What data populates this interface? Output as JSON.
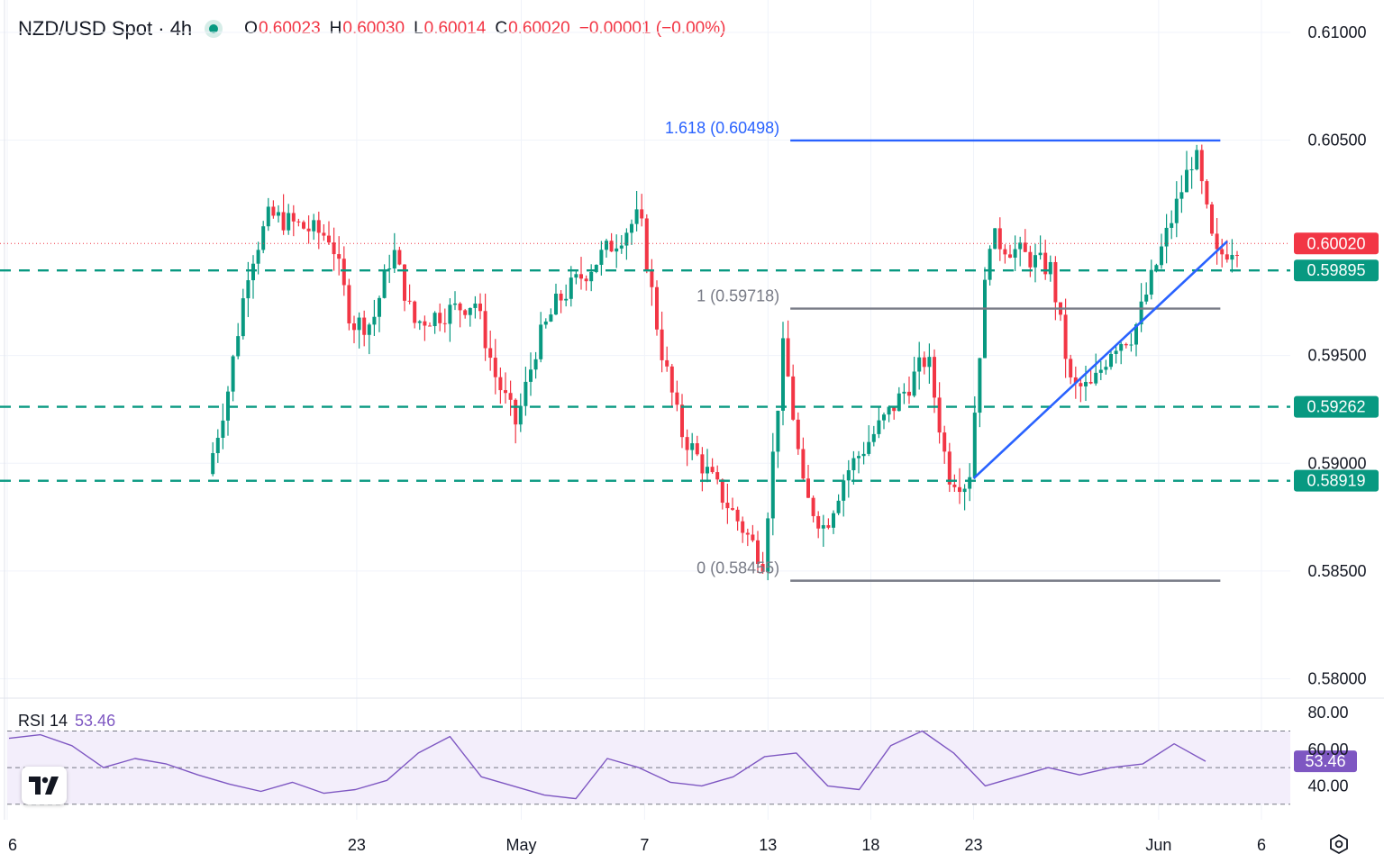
{
  "header": {
    "symbol": "NZD/USD Spot · 4h",
    "open_label": "O",
    "open": "0.60023",
    "high_label": "H",
    "high": "0.60030",
    "low_label": "L",
    "low": "0.60014",
    "close_label": "C",
    "close": "0.60020",
    "change": "−0.00001 (−0.00%)"
  },
  "colors": {
    "up": "#089981",
    "down": "#f23645",
    "fib_blue": "#2962ff",
    "fib_grey": "#787b86",
    "rsi": "#7e57c2",
    "rsi_band": "#f3eefb"
  },
  "chart_data": [
    {
      "type": "candlestick",
      "title": "NZD/USD Spot · 4h",
      "y_axis": {
        "ticks": [
          "0.61000",
          "0.60500",
          "0.59500",
          "0.59000",
          "0.58500",
          "0.58000"
        ],
        "ylim": [
          0.5791,
          0.6115
        ]
      },
      "x_axis": {
        "ticks": [
          "6",
          "23",
          "May",
          "7",
          "13",
          "18",
          "23",
          "Jun",
          "6"
        ]
      },
      "last_price": {
        "value": 0.6002,
        "label": "0.60020"
      },
      "levels": [
        {
          "value": 0.59895,
          "label": "0.59895"
        },
        {
          "value": 0.59262,
          "label": "0.59262"
        },
        {
          "value": 0.58919,
          "label": "0.58919"
        }
      ],
      "fibonacci": [
        {
          "label": "1.618 (0.60498)",
          "value": 0.60498
        },
        {
          "label": "1 (0.59718)",
          "value": 0.59718
        },
        {
          "label": "0 (0.58455)",
          "value": 0.58455
        }
      ],
      "trendline": {
        "from": {
          "date": "May 23",
          "value": 0.5893
        },
        "to": {
          "date": "Jun 4",
          "value": 0.6
        }
      },
      "close_path": [
        [
          "Apr 16",
          0.5895
        ],
        [
          "Apr 17",
          0.5935
        ],
        [
          "Apr 18",
          0.5992
        ],
        [
          "Apr 19",
          0.6015
        ],
        [
          "Apr 22",
          0.6005
        ],
        [
          "Apr 23",
          0.5965
        ],
        [
          "Apr 24",
          0.5965
        ],
        [
          "Apr 25",
          0.6
        ],
        [
          "Apr 26",
          0.5965
        ],
        [
          "Apr 29",
          0.5975
        ],
        [
          "Apr 30",
          0.594
        ],
        [
          "May 1",
          0.5918
        ],
        [
          "May 2",
          0.5955
        ],
        [
          "May 3",
          0.5975
        ],
        [
          "May 6",
          0.6005
        ],
        [
          "May 7",
          0.6015
        ],
        [
          "May 8",
          0.5955
        ],
        [
          "May 9",
          0.5915
        ],
        [
          "May 10",
          0.59
        ],
        [
          "May 13",
          0.5855
        ],
        [
          "May 14",
          0.5955
        ],
        [
          "May 15",
          0.5885
        ],
        [
          "May 16",
          0.587
        ],
        [
          "May 17",
          0.5895
        ],
        [
          "May 20",
          0.5935
        ],
        [
          "May 21",
          0.595
        ],
        [
          "May 22",
          0.5895
        ],
        [
          "May 23",
          0.589
        ],
        [
          "May 24",
          0.6005
        ],
        [
          "May 27",
          0.599
        ],
        [
          "May 28",
          0.5935
        ],
        [
          "May 29",
          0.5935
        ],
        [
          "May 30",
          0.5955
        ],
        [
          "May 31",
          0.596
        ],
        [
          "Jun 3",
          0.6045
        ],
        [
          "Jun 4",
          0.5995
        ],
        [
          "Jun 5",
          0.6002
        ]
      ]
    },
    {
      "type": "line",
      "title": "RSI 14",
      "value_label": "53.46",
      "y_axis": {
        "ticks": [
          "80.00",
          "60.00",
          "40.00"
        ],
        "band": [
          30,
          70
        ]
      },
      "values": [
        66,
        68,
        62,
        50,
        55,
        52,
        46,
        41,
        37,
        42,
        36,
        38,
        43,
        58,
        67,
        45,
        40,
        35,
        33,
        55,
        50,
        42,
        40,
        45,
        56,
        58,
        40,
        38,
        62,
        70,
        58,
        40,
        45,
        50,
        46,
        50,
        52,
        63,
        53.46
      ]
    }
  ]
}
